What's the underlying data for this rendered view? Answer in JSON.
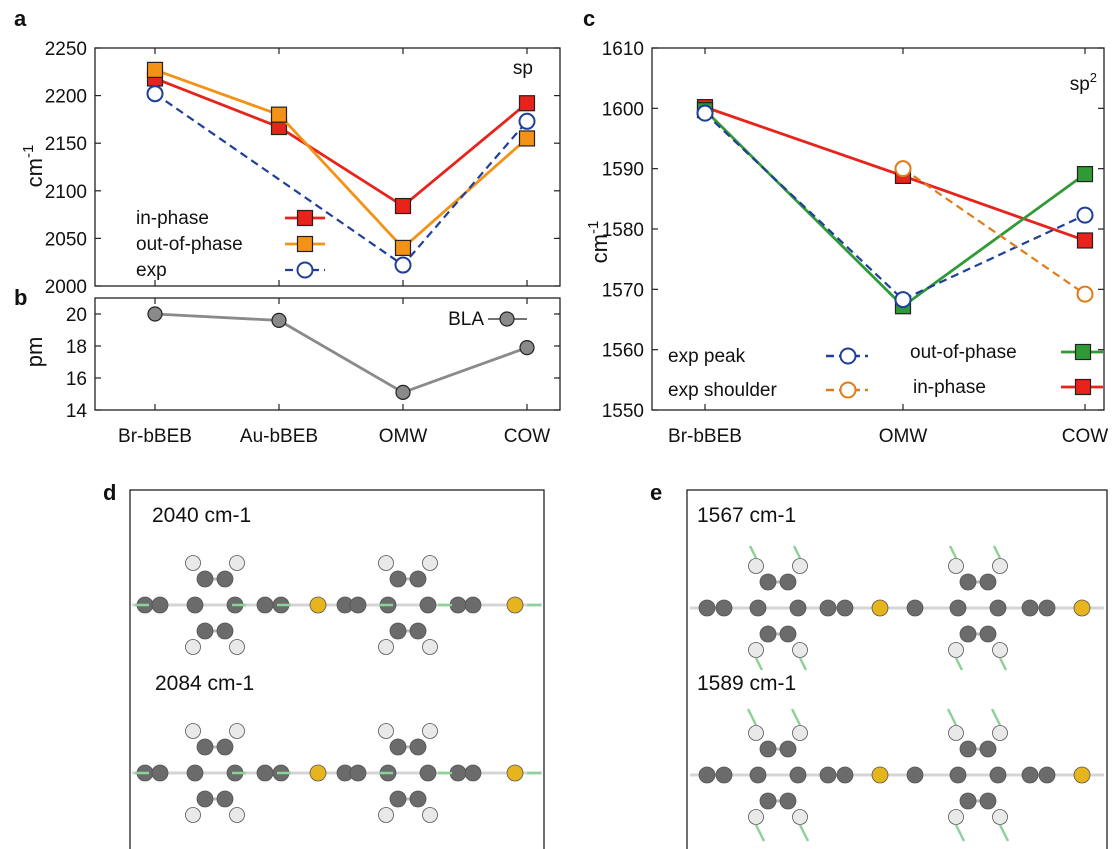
{
  "panels": {
    "a": "a",
    "b": "b",
    "c": "c",
    "d": "d",
    "e": "e"
  },
  "colors": {
    "in_phase": "#e8231b",
    "out_of_phase": "#f39216",
    "exp": "#1f3f9a",
    "exp_shoulder": "#e07b1a",
    "green": "#2f9a36",
    "bla": "#8a8a8a",
    "carbon": "#6b6b6b",
    "hydrogen": "#e9e9e9",
    "gold": "#e6b41c",
    "arrow": "#8fd19a"
  },
  "chart_data": [
    {
      "type": "line",
      "panel": "a",
      "ylabel": "cm-1",
      "ylim": [
        2000,
        2250
      ],
      "yticks": [
        "2000",
        "2050",
        "2100",
        "2150",
        "2200",
        "2250"
      ],
      "annotation": "sp",
      "categories": [
        "Br-bBEB",
        "Au-bBEB",
        "OMW",
        "COW"
      ],
      "series": [
        {
          "name": "in-phase",
          "values": [
            2218,
            2167,
            2084,
            2192
          ],
          "color": "#e8231b",
          "marker": "square-filled",
          "dash": false
        },
        {
          "name": "out-of-phase",
          "values": [
            2227,
            2180,
            2040,
            2155
          ],
          "color": "#f39216",
          "marker": "square-filled",
          "dash": false
        },
        {
          "name": "exp",
          "values": [
            2202,
            null,
            2022,
            2173
          ],
          "color": "#1f3f9a",
          "marker": "circle-open",
          "dash": true
        }
      ]
    },
    {
      "type": "line",
      "panel": "b",
      "ylabel": "pm",
      "ylim": [
        14,
        21
      ],
      "yticks": [
        "14",
        "16",
        "18",
        "20"
      ],
      "categories": [
        "Br-bBEB",
        "Au-bBEB",
        "OMW",
        "COW"
      ],
      "xticklabels": [
        "Br-bBEB",
        "Au-bBEB",
        "OMW",
        "COW"
      ],
      "series": [
        {
          "name": "BLA",
          "values": [
            20.0,
            19.6,
            15.1,
            17.9
          ],
          "color": "#8a8a8a",
          "marker": "circle-filled",
          "dash": false
        }
      ]
    },
    {
      "type": "line",
      "panel": "c",
      "ylabel": "cm-1",
      "ylim": [
        1550,
        1610
      ],
      "yticks": [
        "1550",
        "1560",
        "1570",
        "1580",
        "1590",
        "1600",
        "1610"
      ],
      "annotation": "sp2",
      "categories": [
        "Br-bBEB",
        "OMW",
        "COW"
      ],
      "xticklabels": [
        "Br-bBEB",
        "OMW",
        "COW"
      ],
      "series": [
        {
          "name": "in-phase",
          "values": [
            1600.2,
            1588.8,
            1578.1
          ],
          "color": "#e8231b",
          "marker": "square-filled",
          "dash": false
        },
        {
          "name": "out-of-phase",
          "values": [
            1599.7,
            1567.2,
            1589.1
          ],
          "color": "#2f9a36",
          "marker": "square-filled",
          "dash": false
        },
        {
          "name": "exp peak",
          "values": [
            1599.2,
            1568.3,
            1582.3
          ],
          "color": "#1f3f9a",
          "marker": "circle-open",
          "dash": true
        },
        {
          "name": "exp shoulder",
          "values": [
            null,
            1590.0,
            1569.2
          ],
          "color": "#e07b1a",
          "marker": "circle-open",
          "dash": true
        }
      ]
    }
  ],
  "panel_d": {
    "label_top": "2040 cm-1",
    "label_bottom": "2084 cm-1"
  },
  "panel_e": {
    "label_top": "1567 cm-1",
    "label_bottom": "1589 cm-1"
  }
}
